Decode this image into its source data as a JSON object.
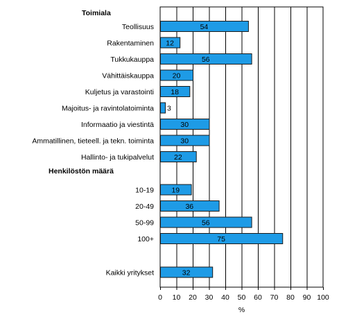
{
  "chart_data": {
    "type": "bar",
    "orientation": "horizontal",
    "xlabel": "%",
    "xlim": [
      0,
      100
    ],
    "xticks": [
      0,
      10,
      20,
      30,
      40,
      50,
      60,
      70,
      80,
      90,
      100
    ],
    "grid": "vertical",
    "bar_color": "#1e9be6",
    "bar_edge_color": "#1a1a1a",
    "groups": [
      {
        "title": "Toimiala",
        "categories": [
          {
            "label": "Teollisuus",
            "value": 54
          },
          {
            "label": "Rakentaminen",
            "value": 12
          },
          {
            "label": "Tukkukauppa",
            "value": 56
          },
          {
            "label": "Vähittäiskauppa",
            "value": 20
          },
          {
            "label": "Kuljetus ja varastointi",
            "value": 18
          },
          {
            "label": "Majoitus- ja ravintolatoiminta",
            "value": 3
          },
          {
            "label": "Informaatio ja viestintä",
            "value": 30
          },
          {
            "label": "Ammatillinen, tieteell. ja tekn. toiminta",
            "value": 30
          },
          {
            "label": "Hallinto- ja tukipalvelut",
            "value": 22
          }
        ]
      },
      {
        "title": "Henkilöstön määrä",
        "categories": [
          {
            "label": "10-19",
            "value": 19
          },
          {
            "label": "20-49",
            "value": 36
          },
          {
            "label": "50-99",
            "value": 56
          },
          {
            "label": "100+",
            "value": 75
          }
        ]
      },
      {
        "title": "",
        "categories": [
          {
            "label": "Kaikki yritykset",
            "value": 32
          }
        ]
      }
    ]
  }
}
